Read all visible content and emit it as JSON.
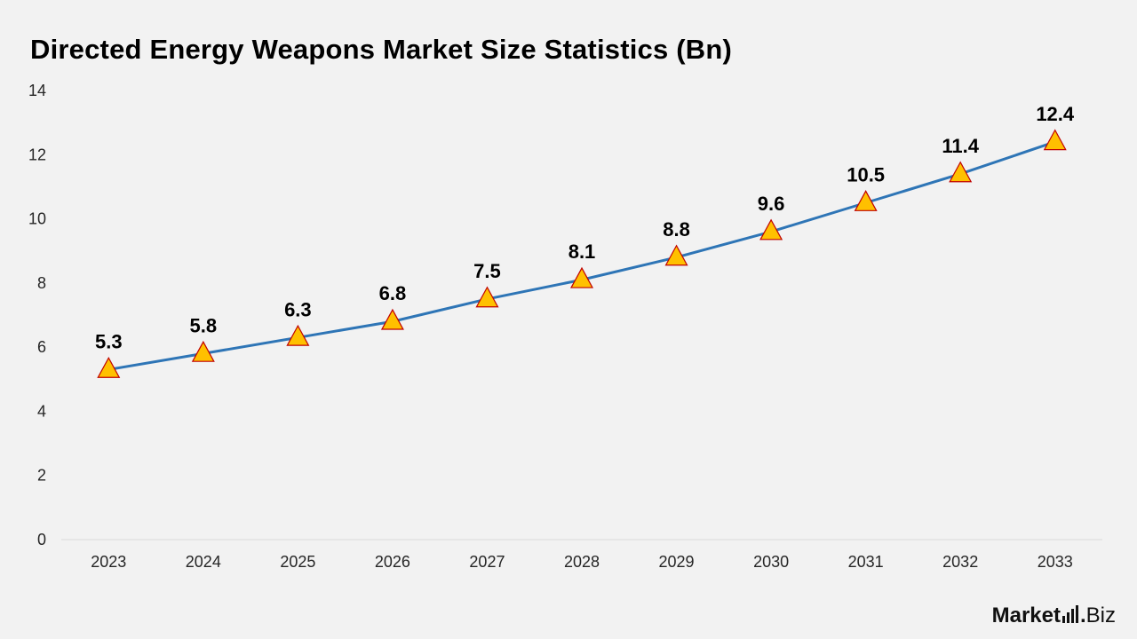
{
  "chart_data": {
    "type": "line",
    "title": "Directed Energy Weapons Market Size Statistics (Bn)",
    "xlabel": "",
    "ylabel": "",
    "categories": [
      "2023",
      "2024",
      "2025",
      "2026",
      "2027",
      "2028",
      "2029",
      "2030",
      "2031",
      "2032",
      "2033"
    ],
    "series": [
      {
        "values": [
          5.3,
          5.8,
          6.3,
          6.8,
          7.5,
          8.1,
          8.8,
          9.6,
          10.5,
          11.4,
          12.4
        ],
        "labels": [
          "5.3",
          "5.8",
          "6.3",
          "6.8",
          "7.5",
          "8.1",
          "8.8",
          "9.6",
          "10.5",
          "11.4",
          "12.4"
        ],
        "color": "#2e75b6",
        "marker": "triangle",
        "marker_color": "#ffc000",
        "marker_edge_color": "#c00000"
      }
    ],
    "ylim": [
      0,
      14
    ],
    "yticks": [
      "0",
      "2",
      "4",
      "6",
      "8",
      "10",
      "12",
      "14"
    ],
    "grid": false,
    "legend": "none"
  },
  "branding": {
    "name_main": "Market",
    "name_dot": ".",
    "name_sub": "Biz"
  }
}
